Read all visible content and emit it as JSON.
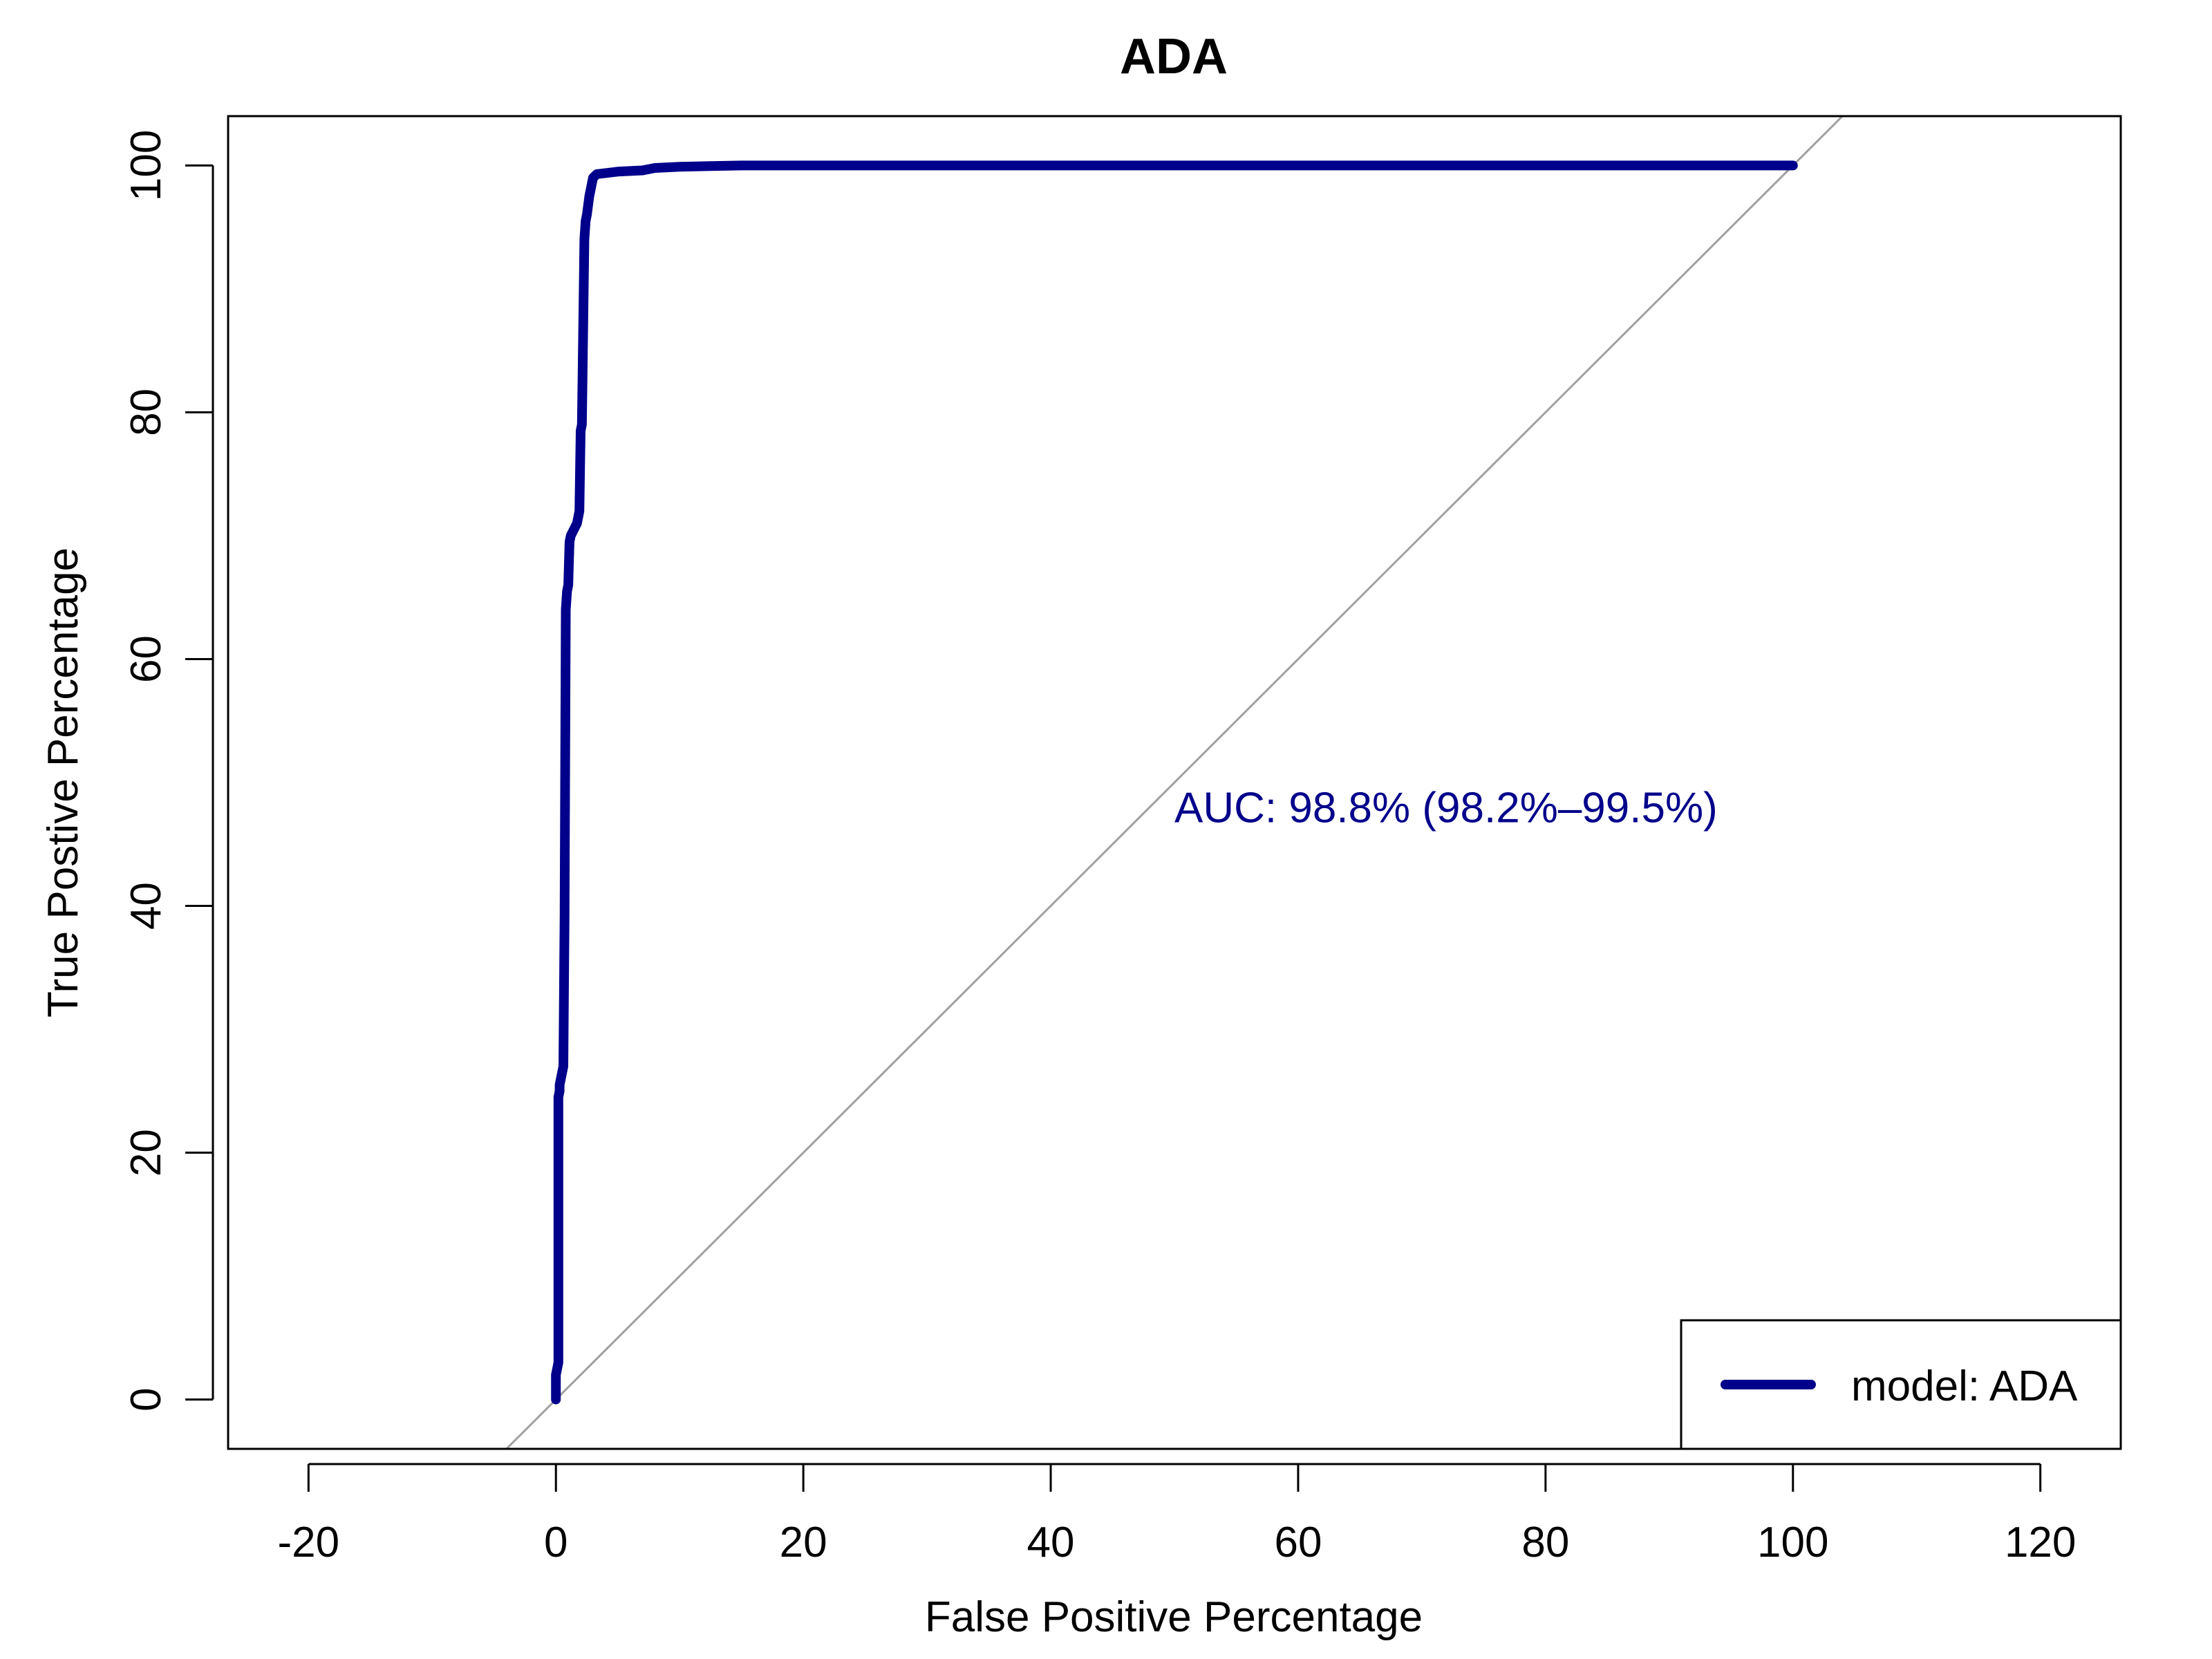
{
  "chart_data": {
    "type": "line",
    "title": "ADA",
    "xlabel": "False Positive Percentage",
    "ylabel": "True Postive Percentage",
    "xlim": [
      -26.5,
      126.5
    ],
    "ylim": [
      -4,
      104
    ],
    "x_ticks": [
      -20,
      0,
      20,
      40,
      60,
      80,
      100,
      120
    ],
    "y_ticks": [
      0,
      20,
      40,
      60,
      80,
      100
    ],
    "x_tick_labels": [
      "-20",
      "0",
      "20",
      "40",
      "60",
      "80",
      "100",
      "120"
    ],
    "y_tick_labels": [
      "0",
      "20",
      "40",
      "60",
      "80",
      "100"
    ],
    "grid": false,
    "legend_position": "bottom-right",
    "series": [
      {
        "name": "model: ADA",
        "color": "#00008B",
        "x": [
          0.0,
          0.0,
          0.1,
          0.2,
          0.2,
          0.3,
          0.3,
          0.5,
          0.6,
          0.7,
          0.7,
          0.8,
          0.9,
          1.0,
          1.1,
          1.2,
          1.3,
          1.7,
          1.9,
          2.0,
          2.1,
          2.3,
          2.4,
          2.5,
          2.7,
          3.0,
          3.3,
          5.0,
          7.0,
          8.0,
          10.0,
          15.0,
          25.0,
          40.0,
          60.0,
          80.0,
          100.0
        ],
        "y": [
          0.0,
          2.0,
          2.5,
          3.0,
          24.5,
          25.0,
          25.5,
          26.5,
          27.0,
          39.5,
          40.0,
          64.0,
          65.5,
          66.0,
          69.5,
          70.0,
          70.2,
          71.0,
          72.0,
          78.5,
          79.0,
          94.0,
          95.5,
          96.0,
          97.5,
          99.0,
          99.3,
          99.5,
          99.6,
          99.8,
          99.9,
          100.0,
          100.0,
          100.0,
          100.0,
          100.0,
          100.0
        ]
      }
    ],
    "reference_line": {
      "color": "#A0A0A0",
      "description": "diagonal"
    },
    "annotations": [
      {
        "text": "AUC: 98.8% (98.2%–99.5%)",
        "x": 50,
        "y": 48,
        "color": "#00008B"
      }
    ]
  }
}
